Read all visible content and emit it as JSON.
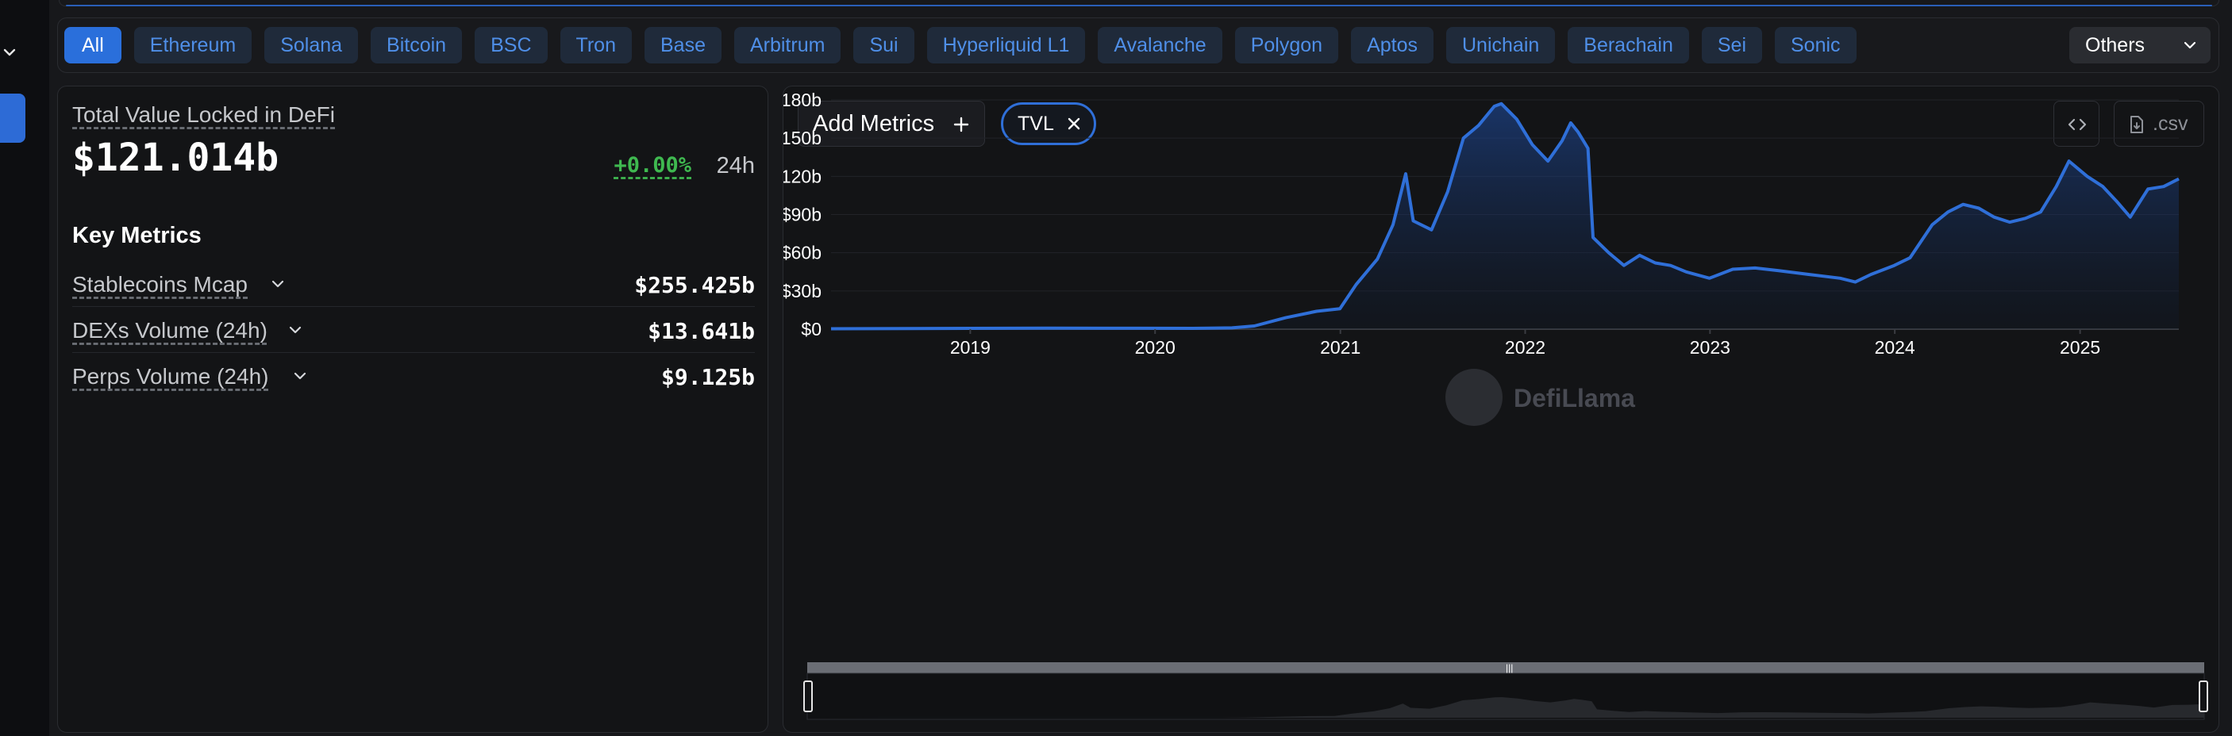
{
  "chains": {
    "tabs": [
      {
        "label": "All",
        "active": true
      },
      {
        "label": "Ethereum"
      },
      {
        "label": "Solana"
      },
      {
        "label": "Bitcoin"
      },
      {
        "label": "BSC"
      },
      {
        "label": "Tron"
      },
      {
        "label": "Base"
      },
      {
        "label": "Arbitrum"
      },
      {
        "label": "Sui"
      },
      {
        "label": "Hyperliquid L1"
      },
      {
        "label": "Avalanche"
      },
      {
        "label": "Polygon"
      },
      {
        "label": "Aptos"
      },
      {
        "label": "Unichain"
      },
      {
        "label": "Berachain"
      },
      {
        "label": "Sei"
      },
      {
        "label": "Sonic"
      }
    ],
    "others_label": "Others"
  },
  "summary": {
    "tvl_label": "Total Value Locked in DeFi",
    "tvl_value": "$121.014b",
    "change_value": "+0.00%",
    "change_period": "24h",
    "key_metrics_title": "Key Metrics",
    "metrics": [
      {
        "label": "Stablecoins Mcap",
        "value": "$255.425b"
      },
      {
        "label": "DEXs Volume (24h)",
        "value": "$13.641b"
      },
      {
        "label": "Perps Volume (24h)",
        "value": "$9.125b"
      }
    ]
  },
  "chart_panel": {
    "add_metrics_label": "Add Metrics",
    "metric_chip_label": "TVL",
    "csv_label": ".csv",
    "watermark_text": "DefiLlama"
  },
  "colors": {
    "accent": "#2a6fdb",
    "line": "#2f6fd8",
    "positive": "#3fb950"
  },
  "chart_data": {
    "type": "area",
    "title": "",
    "xlabel": "",
    "ylabel": "",
    "x_ticks": [
      "2019",
      "2020",
      "2021",
      "2022",
      "2023",
      "2024",
      "2025"
    ],
    "y_ticks": [
      "$0",
      "$30b",
      "$60b",
      "$90b",
      "$120b",
      "$150b",
      "$180b"
    ],
    "ylim": [
      0,
      180
    ],
    "xlim": [
      "2018-04-01",
      "2025-07-15"
    ],
    "grid": true,
    "legend": "none",
    "series": [
      {
        "values_unit": "$b",
        "points": [
          [
            "2018-04-01",
            0.3
          ],
          [
            "2018-09-01",
            0.5
          ],
          [
            "2019-01-01",
            0.6
          ],
          [
            "2019-06-01",
            0.8
          ],
          [
            "2019-12-01",
            0.7
          ],
          [
            "2020-03-15",
            0.6
          ],
          [
            "2020-06-01",
            1.0
          ],
          [
            "2020-07-15",
            2.5
          ],
          [
            "2020-09-15",
            9
          ],
          [
            "2020-11-15",
            14
          ],
          [
            "2020-12-31",
            16
          ],
          [
            "2021-02-01",
            35
          ],
          [
            "2021-03-15",
            55
          ],
          [
            "2021-04-15",
            82
          ],
          [
            "2021-05-10",
            122
          ],
          [
            "2021-05-25",
            85
          ],
          [
            "2021-06-30",
            78
          ],
          [
            "2021-08-01",
            108
          ],
          [
            "2021-09-01",
            150
          ],
          [
            "2021-10-01",
            160
          ],
          [
            "2021-11-01",
            175
          ],
          [
            "2021-11-15",
            177
          ],
          [
            "2021-12-15",
            165
          ],
          [
            "2022-01-15",
            145
          ],
          [
            "2022-02-15",
            132
          ],
          [
            "2022-03-15",
            148
          ],
          [
            "2022-04-01",
            162
          ],
          [
            "2022-04-15",
            155
          ],
          [
            "2022-05-05",
            142
          ],
          [
            "2022-05-15",
            72
          ],
          [
            "2022-06-15",
            60
          ],
          [
            "2022-07-15",
            50
          ],
          [
            "2022-08-15",
            58
          ],
          [
            "2022-09-15",
            52
          ],
          [
            "2022-10-15",
            50
          ],
          [
            "2022-11-15",
            45
          ],
          [
            "2022-12-31",
            40
          ],
          [
            "2023-02-15",
            47
          ],
          [
            "2023-03-31",
            48
          ],
          [
            "2023-05-15",
            46
          ],
          [
            "2023-07-15",
            43
          ],
          [
            "2023-09-15",
            40
          ],
          [
            "2023-10-15",
            37
          ],
          [
            "2023-11-15",
            43
          ],
          [
            "2023-12-31",
            50
          ],
          [
            "2024-01-31",
            56
          ],
          [
            "2024-03-15",
            82
          ],
          [
            "2024-04-15",
            92
          ],
          [
            "2024-05-15",
            98
          ],
          [
            "2024-06-15",
            95
          ],
          [
            "2024-07-15",
            88
          ],
          [
            "2024-08-15",
            84
          ],
          [
            "2024-09-15",
            87
          ],
          [
            "2024-10-15",
            92
          ],
          [
            "2024-11-15",
            112
          ],
          [
            "2024-12-10",
            132
          ],
          [
            "2025-01-15",
            120
          ],
          [
            "2025-02-15",
            112
          ],
          [
            "2025-03-15",
            100
          ],
          [
            "2025-04-10",
            88
          ],
          [
            "2025-05-15",
            110
          ],
          [
            "2025-06-15",
            112
          ],
          [
            "2025-07-15",
            118
          ]
        ]
      }
    ]
  }
}
